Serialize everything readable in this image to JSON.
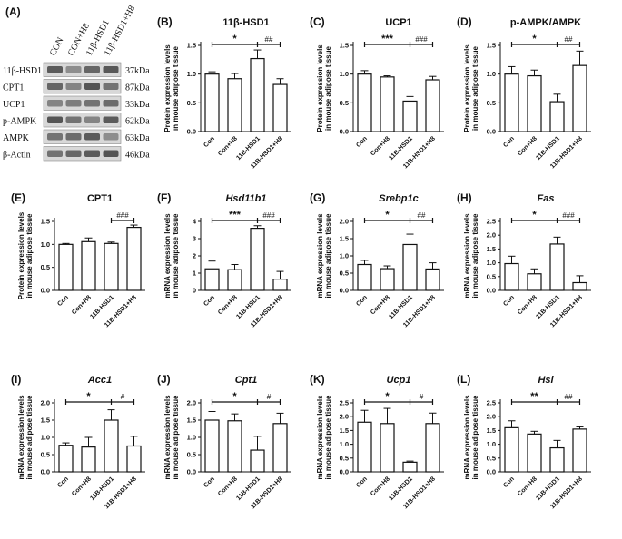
{
  "blot": {
    "letter": "(A)",
    "columns": [
      "CON",
      "CON+H8",
      "11β-HSD1",
      "11β-HSD1+H8"
    ],
    "rows": [
      {
        "protein": "11β-HSD1",
        "size": "37kDa"
      },
      {
        "protein": "CPT1",
        "size": "87kDa"
      },
      {
        "protein": "UCP1",
        "size": "33kDa"
      },
      {
        "protein": "p-AMPK",
        "size": "62kDa"
      },
      {
        "protein": "AMPK",
        "size": "63kDa"
      },
      {
        "protein": "β-Actin",
        "size": "46kDa"
      }
    ]
  },
  "chart_data": [
    {
      "id": "B",
      "letter": "(B)",
      "title": "11β-HSD1",
      "italic": false,
      "type": "bar",
      "ylabel": [
        "Protein expression levels",
        "in mouse adipose tissue"
      ],
      "categories": [
        "Con",
        "Con+H8",
        "11B-HSD1",
        "11B-HSD1+H8"
      ],
      "values": [
        1.0,
        0.92,
        1.27,
        0.82
      ],
      "errors": [
        0.04,
        0.09,
        0.15,
        0.1
      ],
      "ylim": [
        0,
        1.5
      ],
      "yticks": [
        "0.0",
        "0.5",
        "1.0",
        "1.5"
      ],
      "sig_star": "*",
      "sig_hash": "##"
    },
    {
      "id": "C",
      "letter": "(C)",
      "title": "UCP1",
      "italic": false,
      "type": "bar",
      "ylabel": [
        "Protein expression levels",
        "in mouse adipose tissue"
      ],
      "categories": [
        "Con",
        "Con+H8",
        "11B-HSD1",
        "11B-HSD1+H8"
      ],
      "values": [
        1.0,
        0.95,
        0.53,
        0.9
      ],
      "errors": [
        0.06,
        0.02,
        0.08,
        0.06
      ],
      "ylim": [
        0,
        1.5
      ],
      "yticks": [
        "0.0",
        "0.5",
        "1.0",
        "1.5"
      ],
      "sig_star": "***",
      "sig_hash": "###"
    },
    {
      "id": "D",
      "letter": "(D)",
      "title": "p-AMPK/AMPK",
      "italic": false,
      "type": "bar",
      "ylabel": [
        "Protein expression levels",
        "in mouse adipose tissue"
      ],
      "categories": [
        "Con",
        "Con+H8",
        "11B-HSD1",
        "11B-HSD1+H8"
      ],
      "values": [
        1.0,
        0.97,
        0.52,
        1.15
      ],
      "errors": [
        0.13,
        0.1,
        0.13,
        0.25
      ],
      "ylim": [
        0,
        1.5
      ],
      "yticks": [
        "0.0",
        "0.5",
        "1.0",
        "1.5"
      ],
      "sig_star": "*",
      "sig_hash": "##"
    },
    {
      "id": "E",
      "letter": "(E)",
      "title": "CPT1",
      "italic": false,
      "type": "bar",
      "ylabel": [
        "Protein expression levels",
        "in mouse adipose tissue"
      ],
      "categories": [
        "Con",
        "Con+H8",
        "11B-HSD1",
        "11B-HSD1+H8"
      ],
      "values": [
        1.0,
        1.06,
        1.02,
        1.37
      ],
      "errors": [
        0.02,
        0.08,
        0.03,
        0.05
      ],
      "ylim": [
        0,
        1.5
      ],
      "yticks": [
        "0.0",
        "0.5",
        "1.0",
        "1.5"
      ],
      "sig_star": "",
      "sig_hash": "###"
    },
    {
      "id": "F",
      "letter": "(F)",
      "title": "Hsd11b1",
      "italic": true,
      "type": "bar",
      "ylabel": [
        "mRNA expression levels",
        "in mouse adipose tissue"
      ],
      "categories": [
        "Con",
        "Con+H8",
        "11B-HSD1",
        "11B-HSD1+H8"
      ],
      "values": [
        1.25,
        1.2,
        3.6,
        0.65
      ],
      "errors": [
        0.45,
        0.3,
        0.15,
        0.45
      ],
      "ylim": [
        0,
        4
      ],
      "yticks": [
        "0",
        "1",
        "2",
        "3",
        "4"
      ],
      "sig_star": "***",
      "sig_hash": "###"
    },
    {
      "id": "G",
      "letter": "(G)",
      "title": "Srebp1c",
      "italic": true,
      "type": "bar",
      "ylabel": [
        "mRNA expression levels",
        "in mouse adipose tissue"
      ],
      "categories": [
        "Con",
        "Con+H8",
        "11B-HSD1",
        "11B-HSD1+H8"
      ],
      "values": [
        0.75,
        0.63,
        1.33,
        0.62
      ],
      "errors": [
        0.12,
        0.08,
        0.3,
        0.18
      ],
      "ylim": [
        0,
        2.0
      ],
      "yticks": [
        "0.0",
        "0.5",
        "1.0",
        "1.5",
        "2.0"
      ],
      "sig_star": "*",
      "sig_hash": "##"
    },
    {
      "id": "H",
      "letter": "(H)",
      "title": "Fas",
      "italic": true,
      "type": "bar",
      "ylabel": [
        "mRNA expression levels",
        "in mouse adipose tissue"
      ],
      "categories": [
        "Con",
        "Con+H8",
        "11B-HSD1",
        "11B-HSD1+H8"
      ],
      "values": [
        0.97,
        0.6,
        1.68,
        0.28
      ],
      "errors": [
        0.27,
        0.18,
        0.25,
        0.25
      ],
      "ylim": [
        0,
        2.5
      ],
      "yticks": [
        "0.0",
        "0.5",
        "1.0",
        "1.5",
        "2.0",
        "2.5"
      ],
      "sig_star": "*",
      "sig_hash": "###"
    },
    {
      "id": "I",
      "letter": "(I)",
      "title": "Acc1",
      "italic": true,
      "type": "bar",
      "ylabel": [
        "mRNA expression levels",
        "in mouse adipose tissue"
      ],
      "categories": [
        "Con",
        "Con+H8",
        "11B-HSD1",
        "11B-HSD1+H8"
      ],
      "values": [
        0.77,
        0.72,
        1.5,
        0.75
      ],
      "errors": [
        0.07,
        0.28,
        0.3,
        0.28
      ],
      "ylim": [
        0,
        2.0
      ],
      "yticks": [
        "0.0",
        "0.5",
        "1.0",
        "1.5",
        "2.0"
      ],
      "sig_star": "*",
      "sig_hash": "#"
    },
    {
      "id": "J",
      "letter": "(J)",
      "title": "Cpt1",
      "italic": true,
      "type": "bar",
      "ylabel": [
        "mRNA expression levels",
        "in mouse adipose tissue"
      ],
      "categories": [
        "Con",
        "Con+H8",
        "11B-HSD1",
        "11B-HSD1+H8"
      ],
      "values": [
        1.5,
        1.48,
        0.63,
        1.4
      ],
      "errors": [
        0.25,
        0.2,
        0.4,
        0.3
      ],
      "ylim": [
        0,
        2.0
      ],
      "yticks": [
        "0.0",
        "0.5",
        "1.0",
        "1.5",
        "2.0"
      ],
      "sig_star": "*",
      "sig_hash": "#"
    },
    {
      "id": "K",
      "letter": "(K)",
      "title": "Ucp1",
      "italic": true,
      "type": "bar",
      "ylabel": [
        "mRNA expression levels",
        "in mouse adipose tissue"
      ],
      "categories": [
        "Con",
        "Con+H8",
        "11B-HSD1",
        "11B-HSD1+H8"
      ],
      "values": [
        1.8,
        1.75,
        0.35,
        1.75
      ],
      "errors": [
        0.43,
        0.55,
        0.04,
        0.38
      ],
      "ylim": [
        0,
        2.5
      ],
      "yticks": [
        "0.0",
        "0.5",
        "1.0",
        "1.5",
        "2.0",
        "2.5"
      ],
      "sig_star": "*",
      "sig_hash": "#"
    },
    {
      "id": "L",
      "letter": "(L)",
      "title": "Hsl",
      "italic": true,
      "type": "bar",
      "ylabel": [
        "mRNA expression levels",
        "in mouse adipose tissue"
      ],
      "categories": [
        "Con",
        "Con+H8",
        "11B-HSD1",
        "11B-HSD1+H8"
      ],
      "values": [
        1.6,
        1.37,
        0.87,
        1.55
      ],
      "errors": [
        0.25,
        0.1,
        0.27,
        0.08
      ],
      "ylim": [
        0,
        2.5
      ],
      "yticks": [
        "0.0",
        "0.5",
        "1.0",
        "1.5",
        "2.0",
        "2.5"
      ],
      "sig_star": "**",
      "sig_hash": "##"
    }
  ]
}
